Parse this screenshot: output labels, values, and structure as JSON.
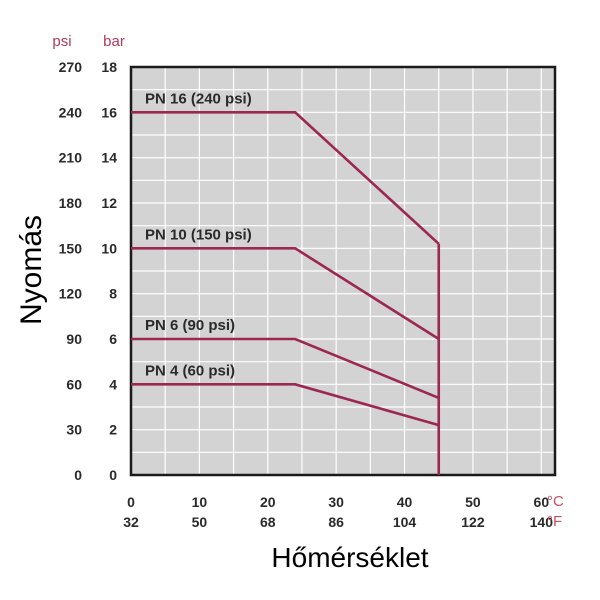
{
  "chart_data": {
    "type": "line",
    "ylabel": "Nyomás",
    "xlabel": "Hőmérséklet",
    "y_units": {
      "primary": "psi",
      "secondary": "bar"
    },
    "x_units": {
      "primary": "°C",
      "secondary": "°F"
    },
    "x_ticks_c": [
      "0",
      "10",
      "20",
      "30",
      "40",
      "50",
      "60"
    ],
    "x_ticks_f": [
      "32",
      "50",
      "68",
      "86",
      "104",
      "122",
      "140"
    ],
    "y_ticks_psi": [
      "0",
      "30",
      "60",
      "90",
      "120",
      "150",
      "180",
      "210",
      "240",
      "270"
    ],
    "y_ticks_bar": [
      "0",
      "2",
      "4",
      "6",
      "8",
      "10",
      "12",
      "14",
      "16",
      "18"
    ],
    "xlim": [
      0,
      62
    ],
    "ylim_bar": [
      0,
      18
    ],
    "grid": true,
    "line_color": "#9c2752",
    "vertical_limit_c": 45,
    "series": [
      {
        "name": "PN 16 (240 psi)",
        "x": [
          0,
          24,
          45
        ],
        "y": [
          16,
          16,
          10.2
        ]
      },
      {
        "name": "PN 10 (150 psi)",
        "x": [
          0,
          24,
          45
        ],
        "y": [
          10,
          10,
          6
        ]
      },
      {
        "name": "PN 6 (90 psi)",
        "x": [
          0,
          24,
          45
        ],
        "y": [
          6,
          6,
          3.4
        ]
      },
      {
        "name": "PN 4 (60 psi)",
        "x": [
          0,
          24,
          45
        ],
        "y": [
          4,
          4,
          2.2
        ]
      }
    ]
  }
}
